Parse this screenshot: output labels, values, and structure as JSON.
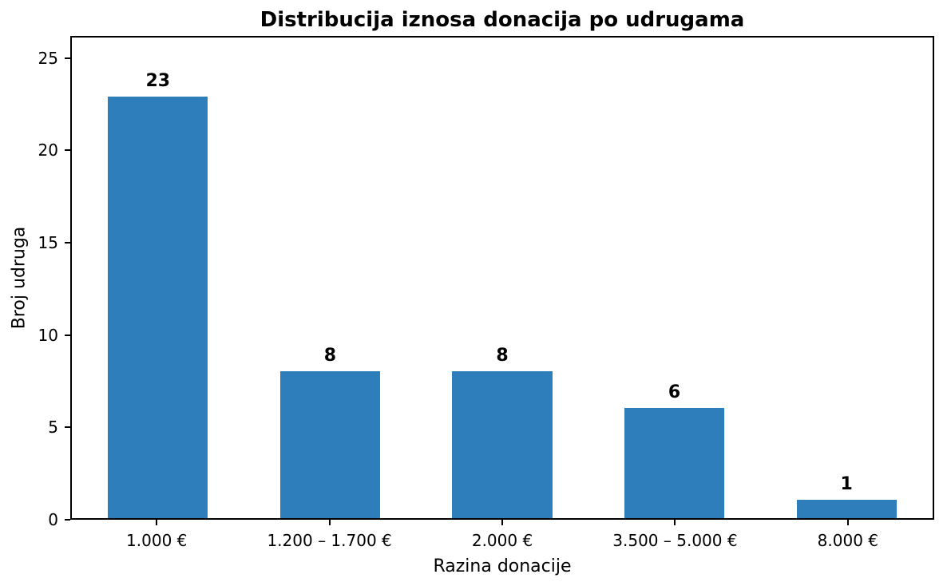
{
  "chart_data": {
    "type": "bar",
    "title": "Distribucija iznosa donacija po udrugama",
    "xlabel": "Razina donacije",
    "ylabel": "Broj udruga",
    "categories": [
      "1.000 €",
      "1.200 – 1.700 €",
      "2.000 €",
      "3.500 – 5.000 €",
      "8.000 €"
    ],
    "values": [
      23,
      8,
      8,
      6,
      1
    ],
    "bar_labels": [
      "23",
      "8",
      "8",
      "6",
      "1"
    ],
    "yticks": [
      0,
      5,
      10,
      15,
      20,
      25
    ],
    "ylim": [
      0,
      26.2
    ],
    "grid": false,
    "legend": null,
    "bar_color": "#2e7ebc",
    "axis_color": "#000000",
    "text_color": "#000000",
    "background_color": "#ffffff"
  }
}
